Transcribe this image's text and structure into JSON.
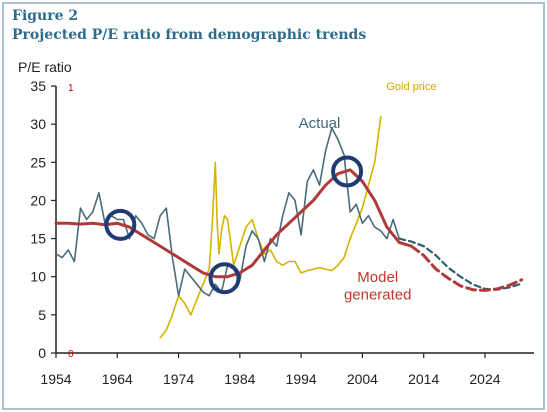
{
  "figure": {
    "label": "Figure 2",
    "title": "Projected P/E ratio from demographic trends"
  },
  "chart_data": {
    "type": "line",
    "ylabel": "P/E ratio",
    "ylim": [
      0,
      35
    ],
    "xlim": [
      1954,
      2032
    ],
    "x_ticks": [
      1954,
      1964,
      1974,
      1984,
      1994,
      2004,
      2014,
      2024
    ],
    "y_ticks": [
      0,
      5,
      10,
      15,
      20,
      25,
      30,
      35
    ],
    "grid": false,
    "secondary_axis": {
      "ticks": [
        "1",
        "0"
      ],
      "color": "#c00000"
    },
    "annotations": [
      {
        "text": "Actual",
        "x": 1997,
        "y": 29.5,
        "color": "#3d6b80"
      },
      {
        "text": "Gold price",
        "x": 2012,
        "y": 34.5,
        "color": "#d4a400"
      },
      {
        "text": "Model",
        "x": 2006.5,
        "y": 9.3,
        "color": "#c0392b"
      },
      {
        "text": "generated",
        "x": 2006.5,
        "y": 7.0,
        "color": "#c0392b"
      }
    ],
    "highlights": [
      {
        "x": 1964.5,
        "y": 16.8
      },
      {
        "x": 1981.5,
        "y": 9.8
      },
      {
        "x": 2001.5,
        "y": 23.8
      }
    ],
    "series": [
      {
        "color": "#4a6b7c",
        "style": "solid",
        "x": [
          1954,
          1955,
          1956,
          1957,
          1958,
          1959,
          1960,
          1961,
          1962,
          1963,
          1964,
          1965,
          1966,
          1967,
          1968,
          1969,
          1970,
          1971,
          1972,
          1973,
          1974,
          1975,
          1976,
          1977,
          1978,
          1979,
          1980,
          1981,
          1982,
          1983,
          1984,
          1985,
          1986,
          1987,
          1988,
          1989,
          1990,
          1991,
          1992,
          1993,
          1994,
          1995,
          1996,
          1997,
          1998,
          1999,
          2000,
          2001,
          2002,
          2003,
          2004,
          2005,
          2006,
          2007,
          2008,
          2009,
          2010
        ],
        "y": [
          13.0,
          12.5,
          13.5,
          12.0,
          19.0,
          17.5,
          18.5,
          21.0,
          17.0,
          18.0,
          17.5,
          17.5,
          15.0,
          18.0,
          17.0,
          15.5,
          15.0,
          18.0,
          19.0,
          12.5,
          7.5,
          11.0,
          10.0,
          9.0,
          8.0,
          7.5,
          9.0,
          8.0,
          11.5,
          11.0,
          9.5,
          14.0,
          16.0,
          15.0,
          12.0,
          15.0,
          14.0,
          18.0,
          21.0,
          20.0,
          15.5,
          22.5,
          24.0,
          22.0,
          26.5,
          29.5,
          28.0,
          26.0,
          18.5,
          19.5,
          17.0,
          18.0,
          16.5,
          16.0,
          15.0,
          17.5,
          15.0
        ]
      },
      {
        "color": "#d4b400",
        "style": "solid",
        "x": [
          1971,
          1972,
          1973,
          1974,
          1975,
          1976,
          1977,
          1978,
          1979,
          1979.5,
          1980,
          1980.3,
          1980.6,
          1981,
          1981.5,
          1982,
          1983,
          1984,
          1985,
          1986,
          1987,
          1988,
          1989,
          1990,
          1991,
          1992,
          1993,
          1994,
          1995,
          1996,
          1997,
          1998,
          1999,
          2000,
          2001,
          2002,
          2003,
          2004,
          2005,
          2006,
          2007
        ],
        "y": [
          2.0,
          3.0,
          5.0,
          7.5,
          6.5,
          5.0,
          7.0,
          9.0,
          11.0,
          17.0,
          25.0,
          17.0,
          13.0,
          16.0,
          18.0,
          17.5,
          11.5,
          14.0,
          16.5,
          17.5,
          15.0,
          13.0,
          13.5,
          12.0,
          11.5,
          12.0,
          12.0,
          10.5,
          10.8,
          11.0,
          11.2,
          11.0,
          10.8,
          11.5,
          12.5,
          15.0,
          17.0,
          19.0,
          22.0,
          25.0,
          31.0
        ]
      },
      {
        "color": "#b03a3a",
        "style": "solid",
        "x": [
          1954,
          1956,
          1958,
          1960,
          1962,
          1964,
          1966,
          1968,
          1970,
          1972,
          1974,
          1976,
          1978,
          1980,
          1982,
          1984,
          1986,
          1988,
          1990,
          1992,
          1994,
          1996,
          1998,
          2000,
          2002,
          2004,
          2006,
          2008,
          2010,
          2012
        ],
        "y": [
          17.0,
          17.0,
          16.9,
          17.0,
          16.8,
          17.0,
          16.5,
          15.5,
          14.5,
          13.5,
          12.5,
          11.5,
          10.5,
          10.0,
          10.0,
          10.5,
          11.5,
          13.5,
          15.5,
          17.0,
          18.5,
          20.0,
          22.0,
          23.5,
          24.0,
          22.5,
          20.0,
          16.5,
          14.5,
          14.0
        ]
      },
      {
        "color": "#b03a3a",
        "style": "dashed",
        "x": [
          2012,
          2014,
          2016,
          2018,
          2020,
          2022,
          2024,
          2026,
          2028,
          2030
        ],
        "y": [
          14.0,
          12.8,
          11.0,
          9.8,
          8.8,
          8.3,
          8.2,
          8.4,
          8.9,
          9.6
        ]
      },
      {
        "color": "#2e5f6e",
        "style": "dashed",
        "x": [
          2010,
          2012,
          2014,
          2016,
          2018,
          2020,
          2022,
          2024,
          2026,
          2028,
          2030
        ],
        "y": [
          15.0,
          14.6,
          14.0,
          12.8,
          11.2,
          10.0,
          9.0,
          8.4,
          8.3,
          8.6,
          9.1
        ]
      }
    ]
  }
}
